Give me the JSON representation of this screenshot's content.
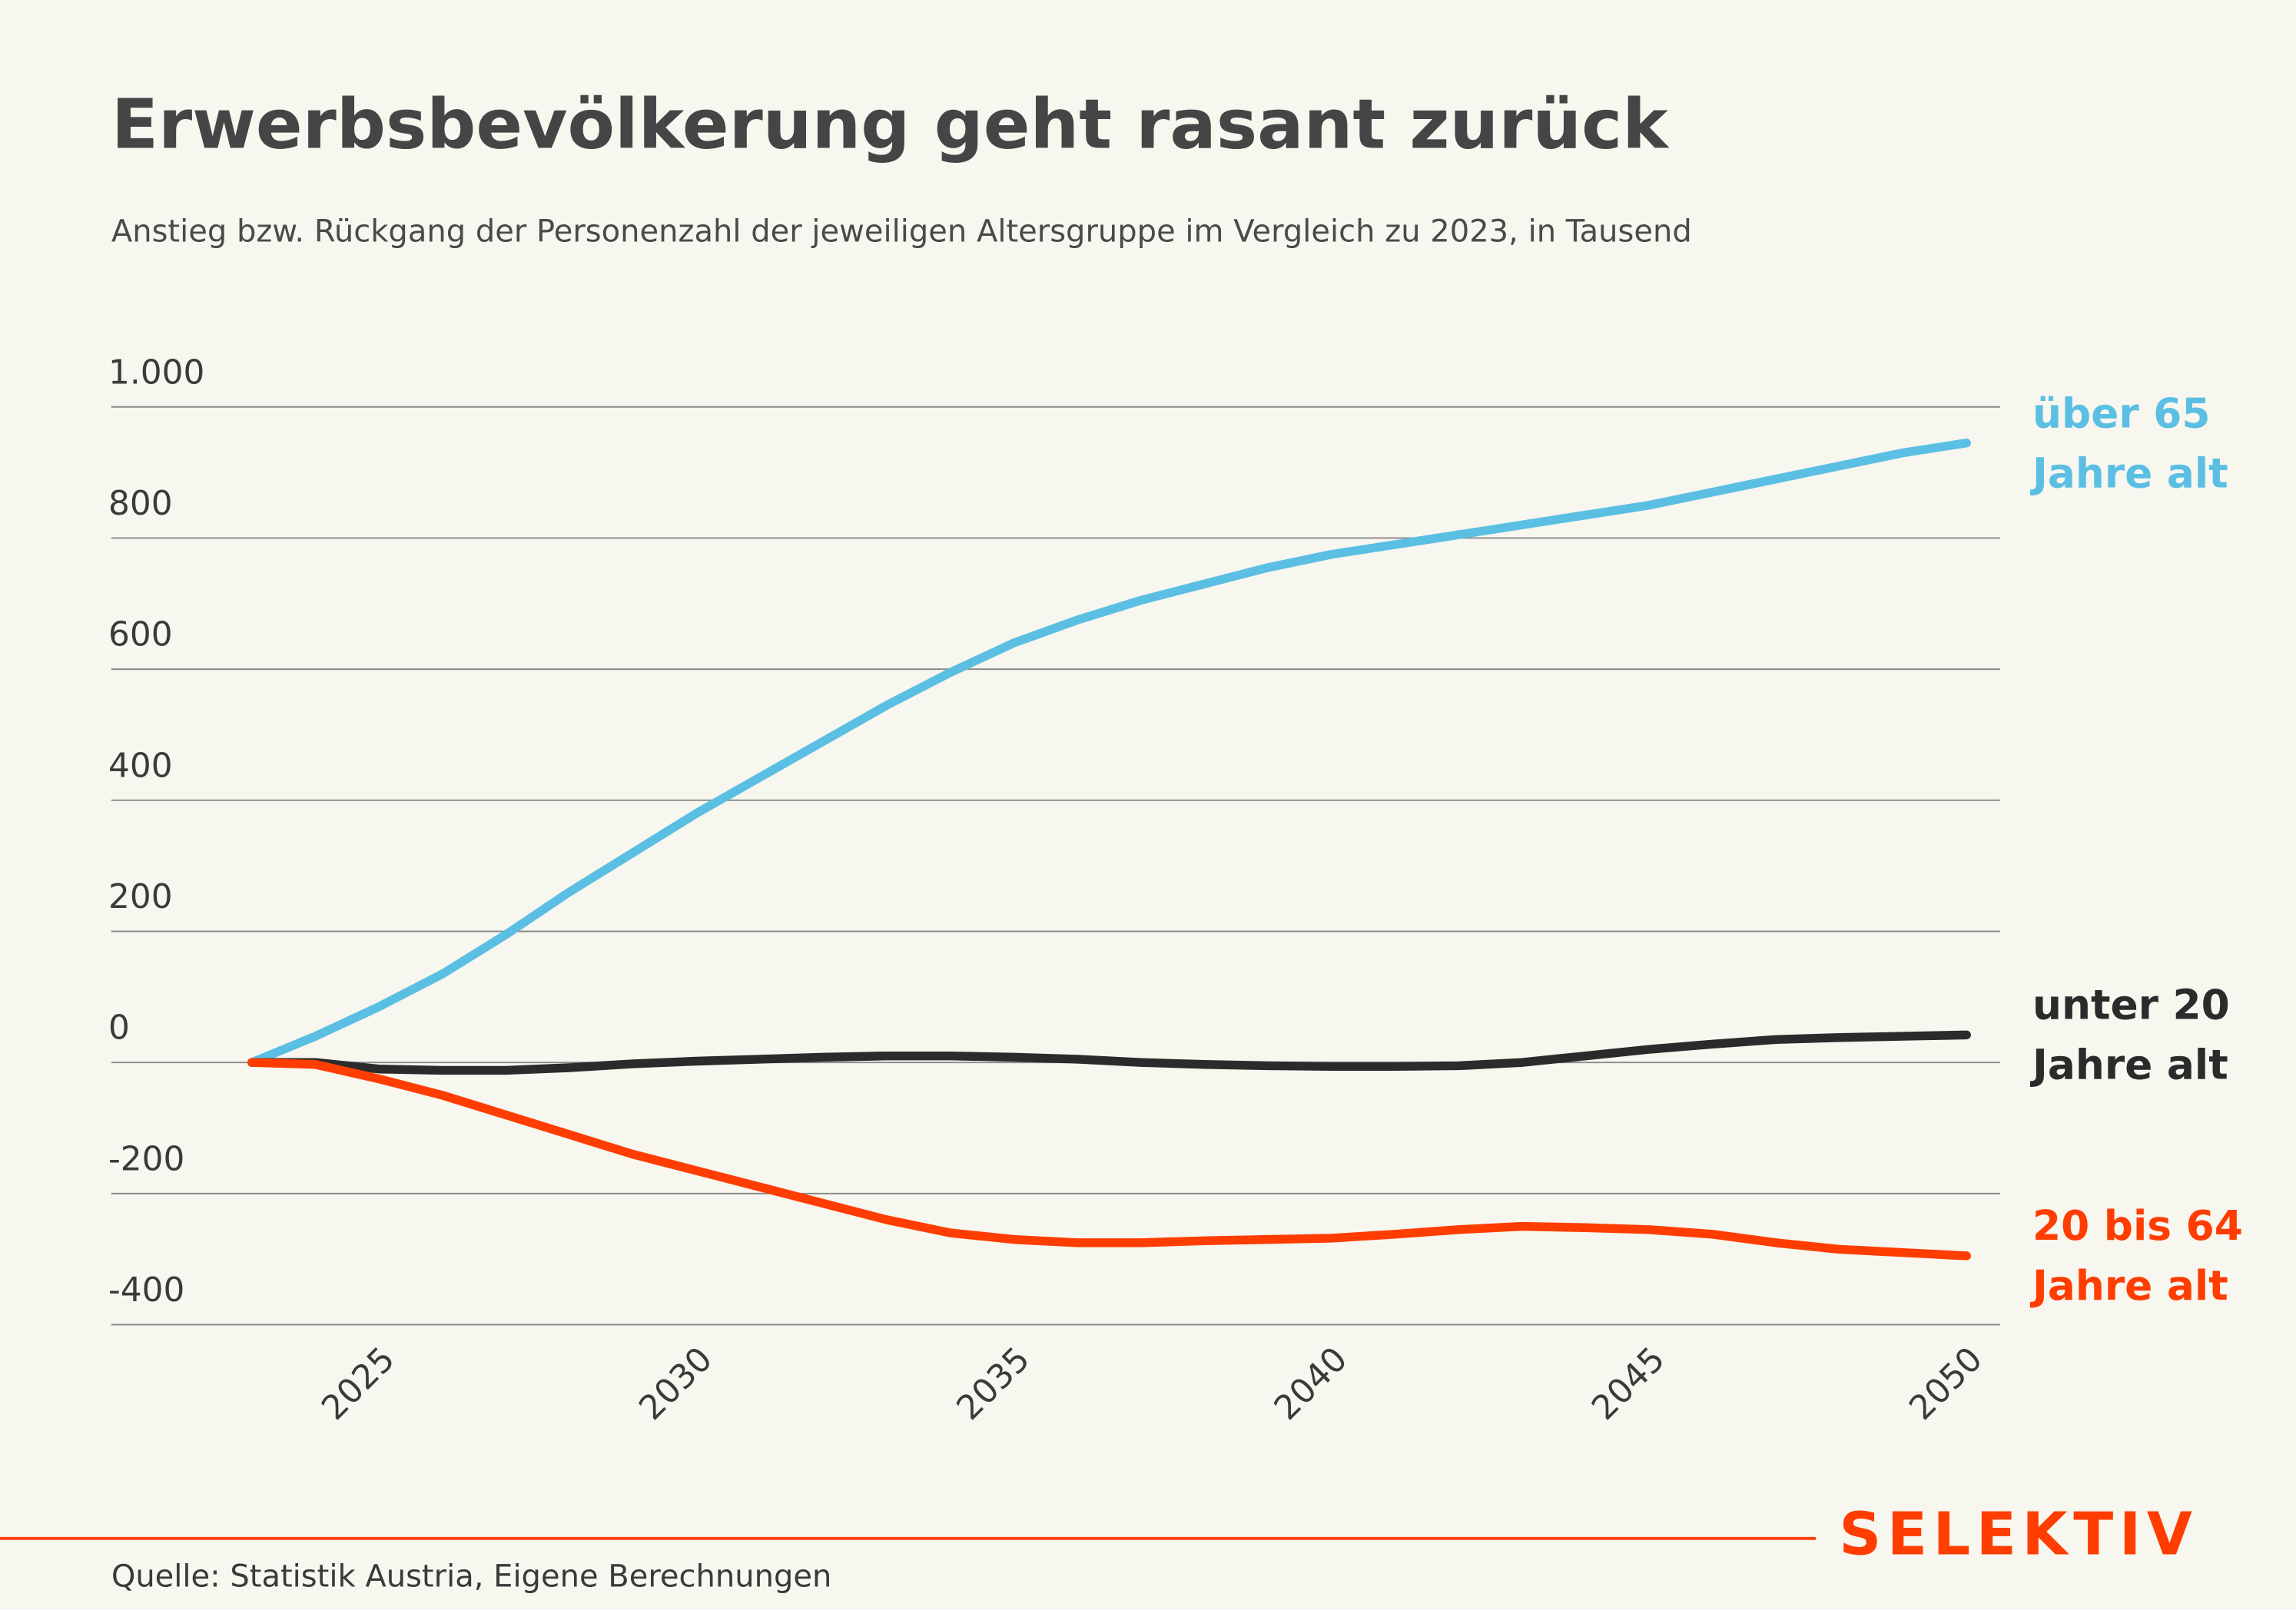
{
  "chart_data": {
    "type": "line",
    "title": "Erwerbsbevölkerung geht rasant zurück",
    "subtitle": "Anstieg bzw. Rückgang der Personenzahl der jeweiligen Altersgruppe im Vergleich zu 2023, in Tausend",
    "source": "Quelle: Statistik Austria, Eigene Berechnungen",
    "brand": "SELEKTIV",
    "x": [
      2023,
      2024,
      2025,
      2026,
      2027,
      2028,
      2029,
      2030,
      2031,
      2032,
      2033,
      2034,
      2035,
      2036,
      2037,
      2038,
      2039,
      2040,
      2041,
      2042,
      2043,
      2044,
      2045,
      2046,
      2047,
      2048,
      2049,
      2050
    ],
    "xlim": [
      2023,
      2050
    ],
    "xticks": [
      2025,
      2030,
      2035,
      2040,
      2045,
      2050
    ],
    "ylim": [
      -400,
      1000
    ],
    "yticks": [
      -400,
      -200,
      0,
      200,
      400,
      600,
      800,
      {
        "value": 1000,
        "label": "1.000"
      }
    ],
    "grid": true,
    "series": [
      {
        "name": "über 65 Jahre alt",
        "color": "#5bbfe3",
        "values": [
          0,
          40,
          85,
          135,
          195,
          260,
          320,
          380,
          435,
          490,
          545,
          595,
          640,
          675,
          705,
          730,
          755,
          775,
          790,
          805,
          820,
          835,
          850,
          870,
          890,
          910,
          930,
          945
        ]
      },
      {
        "name": "unter 20 Jahre alt",
        "color": "#2b2b2b",
        "values": [
          0,
          0,
          -10,
          -12,
          -12,
          -8,
          -2,
          2,
          5,
          8,
          10,
          10,
          8,
          5,
          0,
          -3,
          -5,
          -6,
          -6,
          -5,
          0,
          10,
          20,
          28,
          35,
          38,
          40,
          42
        ]
      },
      {
        "name": "20 bis 64 Jahre alt",
        "color": "#ff3d00",
        "values": [
          0,
          -3,
          -25,
          -50,
          -80,
          -110,
          -140,
          -165,
          -190,
          -215,
          -240,
          -260,
          -270,
          -275,
          -275,
          -272,
          -270,
          -268,
          -262,
          -255,
          -250,
          -252,
          -255,
          -262,
          -275,
          -285,
          -290,
          -295
        ]
      }
    ]
  }
}
